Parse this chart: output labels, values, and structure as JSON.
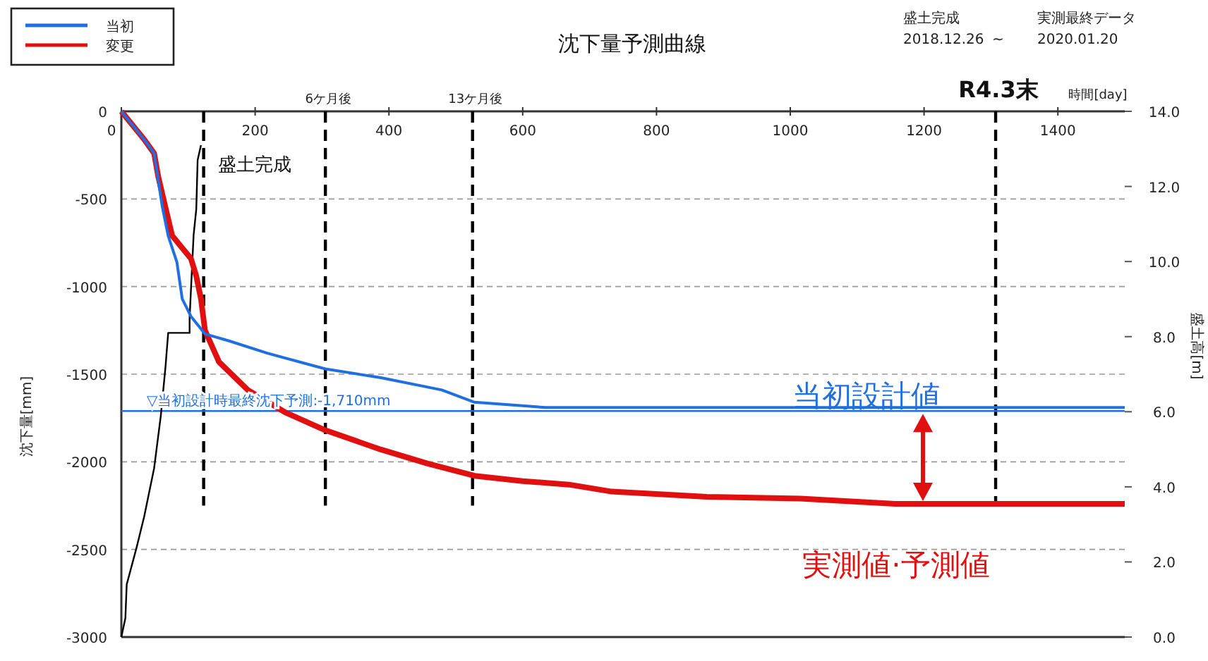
{
  "chart_data": {
    "type": "line",
    "title": "沈下量予測曲線",
    "xlabel": "時間[day]",
    "ylabel": "沈下量[mm]",
    "y2label": "盛土高[m]",
    "xlim": [
      0,
      1500
    ],
    "xticks": [
      0,
      200,
      400,
      600,
      800,
      1000,
      1200,
      1400
    ],
    "ylim": [
      -3000,
      0
    ],
    "yticks": [
      -3000,
      -2500,
      -2000,
      -1500,
      -1000,
      -500,
      0
    ],
    "y2lim": [
      0,
      14
    ],
    "y2ticks": [
      {
        "value": 0,
        "label": "0.0"
      },
      {
        "value": 2,
        "label": "2.0"
      },
      {
        "value": 4,
        "label": "4.0"
      },
      {
        "value": 6,
        "label": "6.0"
      },
      {
        "value": 8,
        "label": "8.0"
      },
      {
        "value": 10,
        "label": "10.0"
      },
      {
        "value": 12,
        "label": "12.0"
      },
      {
        "value": 14,
        "label": "14.0"
      }
    ],
    "grid": "y",
    "legend": "top left",
    "series": [
      {
        "name": "当初",
        "color": "#1f6fe0",
        "x": [
          0,
          34,
          49,
          61,
          70,
          83,
          91,
          104,
          125,
          161,
          218,
          305,
          388,
          479,
          528,
          564,
          634,
          733,
          900,
          1100,
          1300,
          1500
        ],
        "values": [
          0,
          -160,
          -240,
          -540,
          -710,
          -860,
          -1070,
          -1170,
          -1270,
          -1310,
          -1380,
          -1470,
          -1520,
          -1590,
          -1660,
          -1670,
          -1690,
          -1690,
          -1690,
          -1690,
          -1690,
          -1690
        ]
      },
      {
        "name": "変更",
        "color": "#e01010",
        "x": [
          0,
          34,
          49,
          55,
          66,
          76,
          104,
          112,
          119,
          125,
          146,
          189,
          246,
          305,
          388,
          458,
          528,
          600,
          669,
          733,
          875,
          1015,
          1157,
          1500
        ],
        "values": [
          0,
          -160,
          -240,
          -370,
          -550,
          -710,
          -840,
          -940,
          -1070,
          -1250,
          -1430,
          -1590,
          -1720,
          -1820,
          -1930,
          -2010,
          -2080,
          -2110,
          -2130,
          -2170,
          -2200,
          -2210,
          -2240,
          -2240
        ]
      },
      {
        "color": "#000000",
        "axis": "y2",
        "x": [
          0,
          6,
          8,
          23,
          34,
          49,
          59,
          66,
          70,
          102,
          102,
          108,
          112,
          114,
          119
        ],
        "values": [
          0,
          0.5,
          1.4,
          2.4,
          3.2,
          4.5,
          5.9,
          7.2,
          8.1,
          8.1,
          8.5,
          10.7,
          11.4,
          12.7,
          13.1
        ]
      }
    ],
    "ref_lines": [
      {
        "axis": "x",
        "value": 123,
        "label": "盛土完成",
        "color": "#000000",
        "line_style": "dashed"
      },
      {
        "axis": "x",
        "value": 305,
        "label": "6ケ月後",
        "color": "#000000",
        "line_style": "dashed"
      },
      {
        "axis": "x",
        "value": 525,
        "label": "13ケ月後",
        "color": "#000000",
        "line_style": "dashed"
      },
      {
        "axis": "x",
        "value": 1307,
        "label": "R4.3末",
        "color": "#000000",
        "line_style": "dashed"
      },
      {
        "axis": "y",
        "value": -1710,
        "label": "▽当初設計時最終沈下予測:-1,710mm",
        "color": "#1f6fe0",
        "line_style": "solid"
      }
    ],
    "annotations": [
      "盛土完成",
      "2018.12.26",
      "~",
      "実測最終データ",
      "2020.01.20",
      "当初設計値",
      "実測値·予測値"
    ]
  }
}
